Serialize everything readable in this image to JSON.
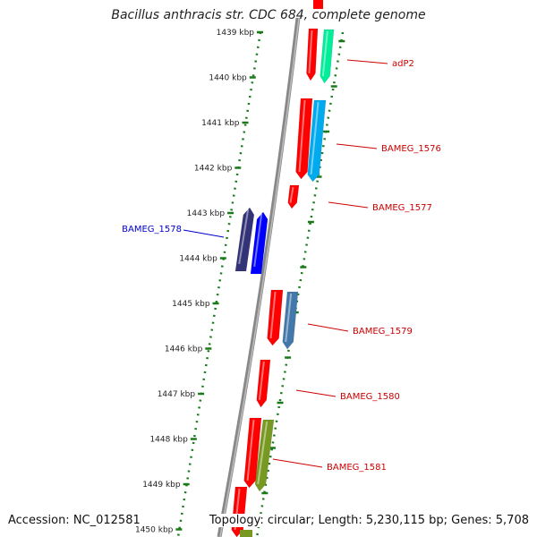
{
  "title": "Bacillus anthracis str. CDC 684, complete genome",
  "footer": {
    "accession": "Accession: NC_012581",
    "topology": "Topology: circular; Length: 5,230,115 bp; Genes: 5,708"
  },
  "colors": {
    "backbone": "#888888",
    "tick": "#1a7a1a",
    "red_feature": "#ff0000",
    "forward_label": "#0000cc",
    "reverse_label": "#cc0000"
  },
  "ticks": [
    "1439 kbp",
    "1440 kbp",
    "1441 kbp",
    "1442 kbp",
    "1443 kbp",
    "1444 kbp",
    "1445 kbp",
    "1446 kbp",
    "1447 kbp",
    "1448 kbp",
    "1449 kbp",
    "1450 kbp"
  ],
  "genes": [
    {
      "label": "adP2",
      "color": "#00ee99",
      "strand": "reverse"
    },
    {
      "label": "BAMEG_1576",
      "color": "#00aaee",
      "strand": "reverse"
    },
    {
      "label": "BAMEG_1577",
      "color": "#ff0000",
      "strand": "reverse"
    },
    {
      "label": "BAMEG_1578",
      "color": "#333377",
      "strand": "forward"
    },
    {
      "label": "BAMEG_1579",
      "color": "#4477aa",
      "strand": "reverse"
    },
    {
      "label": "BAMEG_1580",
      "color": "#ff0000",
      "strand": "reverse"
    },
    {
      "label": "BAMEG_1581",
      "color": "#779922",
      "strand": "reverse"
    }
  ]
}
